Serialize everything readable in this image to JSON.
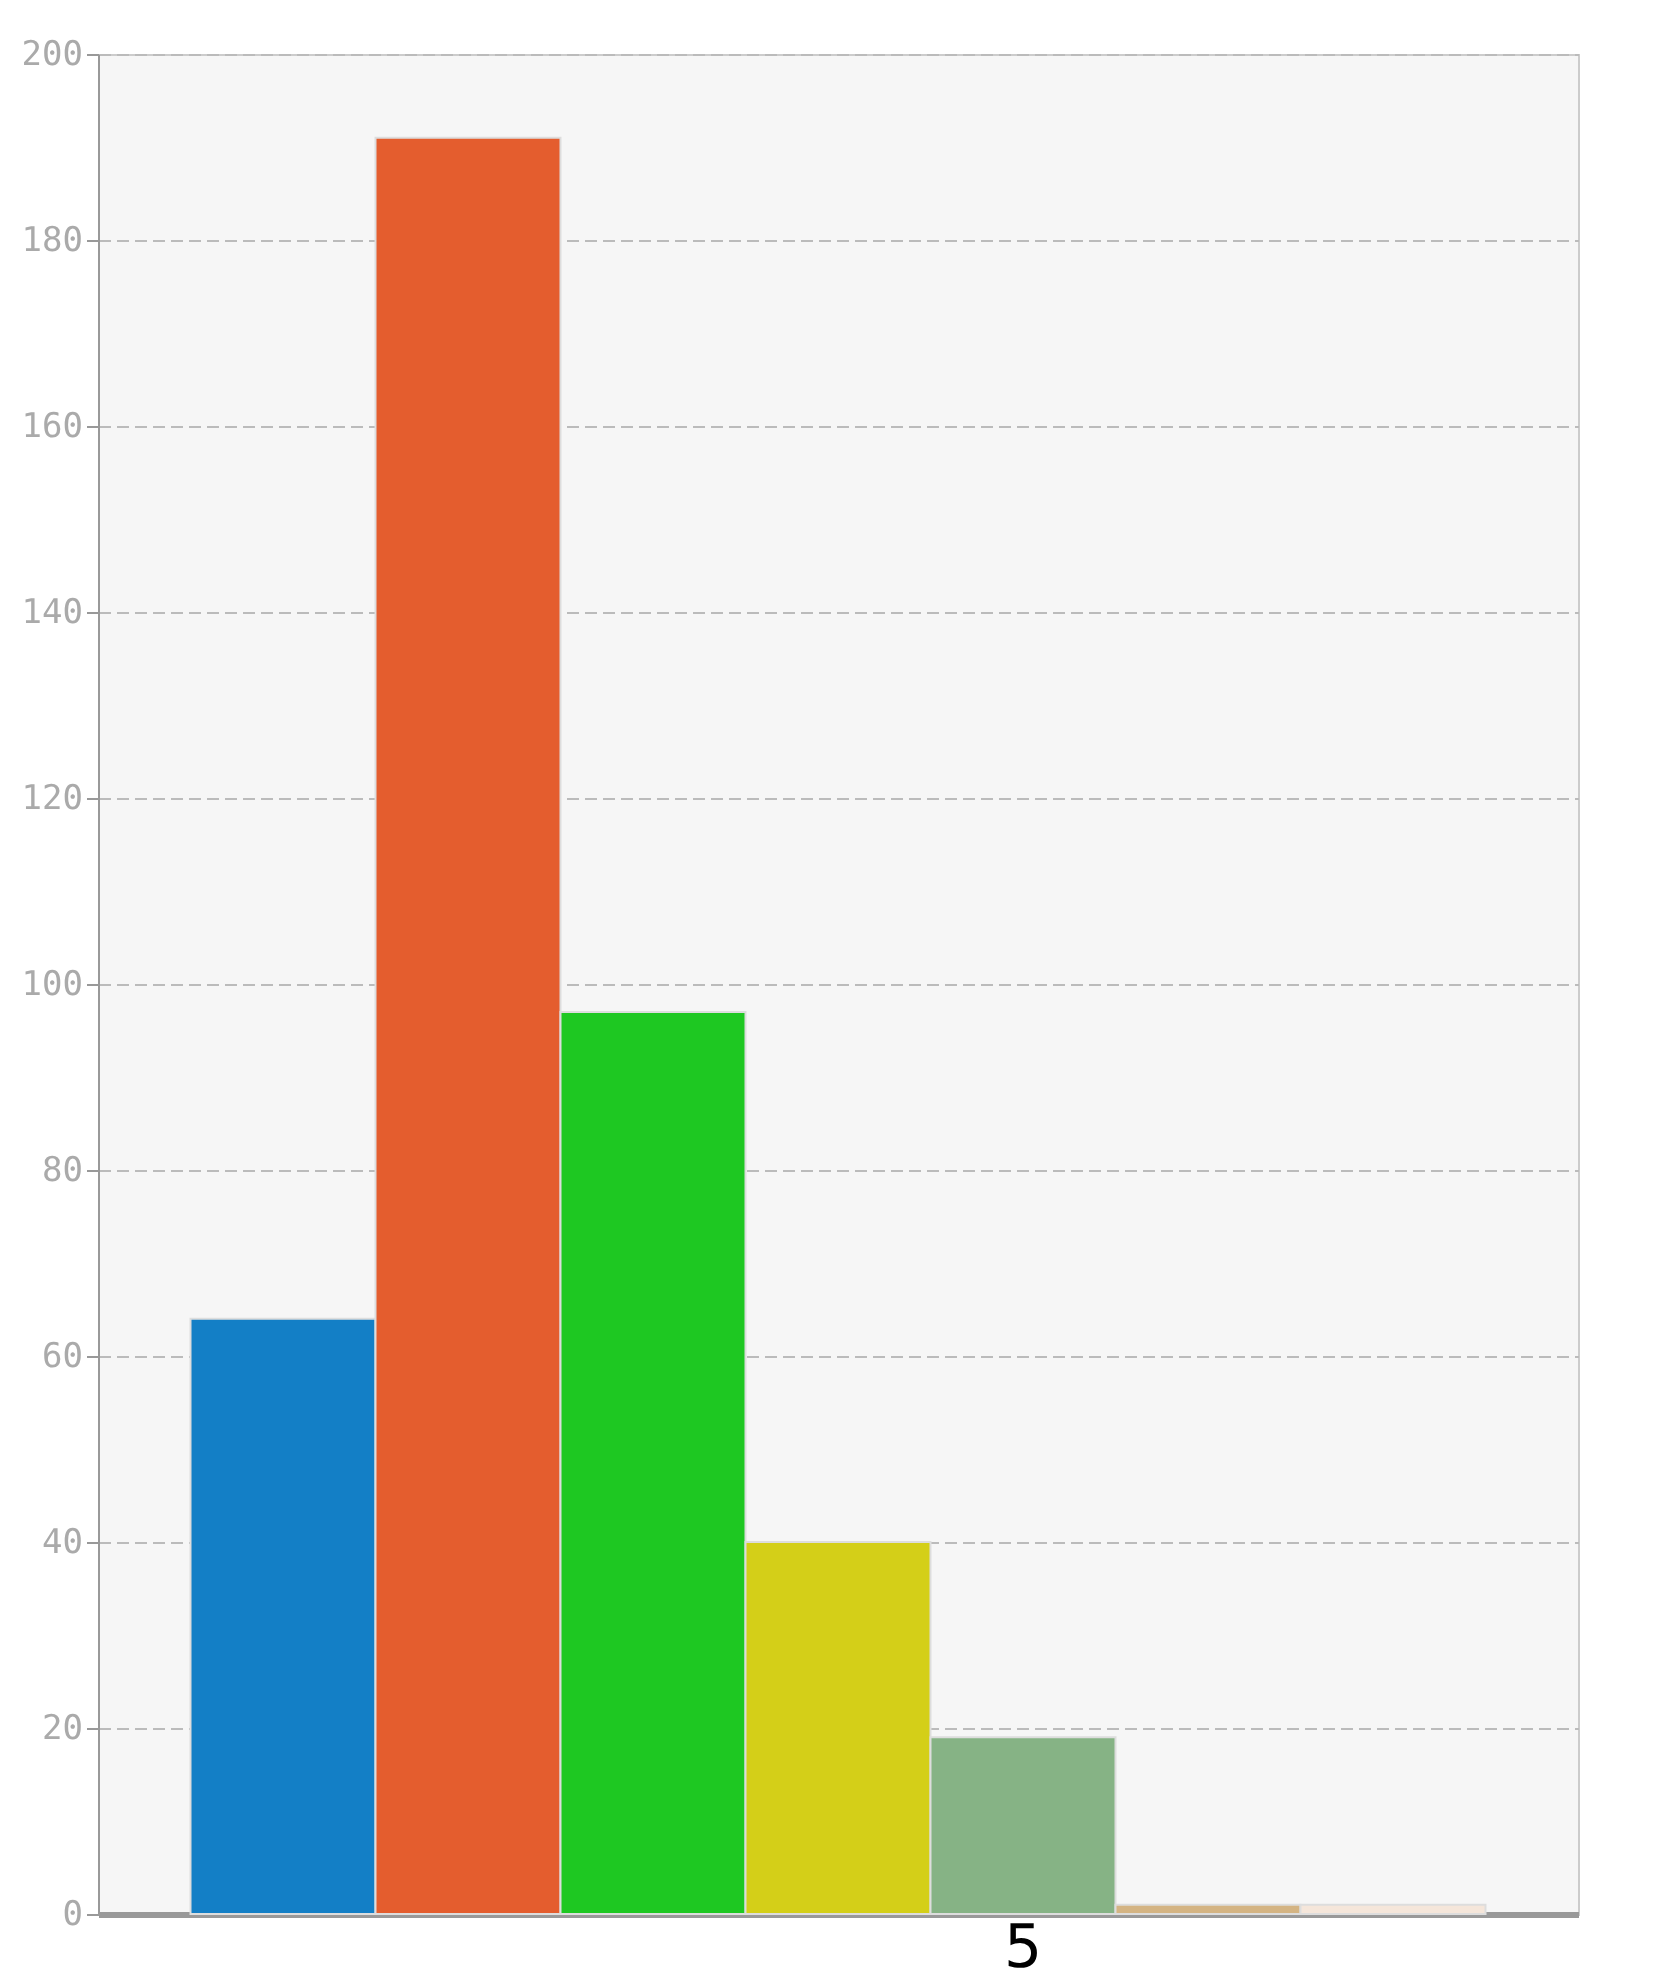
{
  "chart_data": {
    "type": "bar",
    "categories": [
      null,
      null,
      null,
      null,
      "5",
      null,
      null
    ],
    "values": [
      64,
      191,
      97,
      40,
      19,
      1,
      1
    ],
    "colors": [
      "#137fc6",
      "#e45d2e",
      "#1ec822",
      "#d4cf18",
      "#86b385",
      "#d4b483",
      "#f5e6da"
    ],
    "ylim": [
      0,
      200
    ],
    "yticks": [
      0,
      20,
      40,
      60,
      80,
      100,
      120,
      140,
      160,
      180,
      200
    ],
    "grid": "y"
  }
}
